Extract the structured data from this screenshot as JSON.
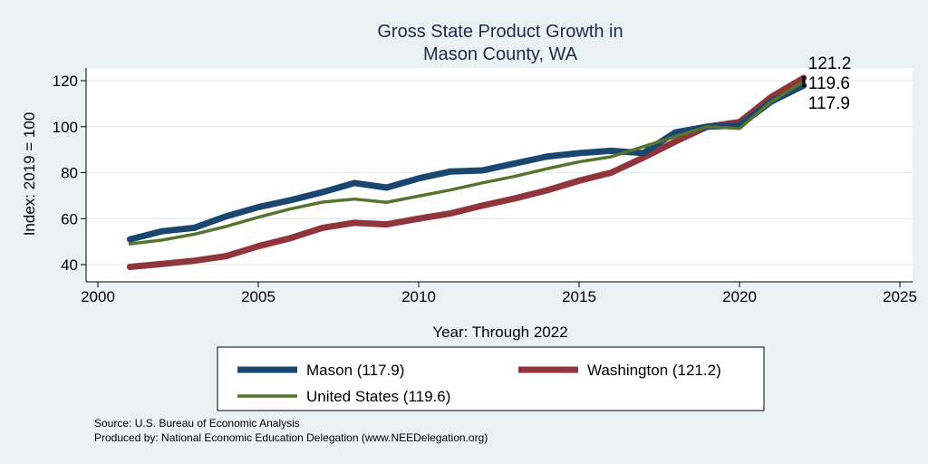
{
  "chart_data": {
    "type": "line",
    "title": [
      "Gross State Product Growth in",
      "Mason County, WA"
    ],
    "xlabel": "Year: Through 2022",
    "ylabel": "Index: 2019 = 100",
    "xlim": [
      2000,
      2025
    ],
    "ylim": [
      35,
      125
    ],
    "xticks": [
      2000,
      2005,
      2010,
      2015,
      2020,
      2025
    ],
    "yticks": [
      40,
      60,
      80,
      100,
      120
    ],
    "grid": true,
    "x": [
      2001,
      2002,
      2003,
      2004,
      2005,
      2006,
      2007,
      2008,
      2009,
      2010,
      2011,
      2012,
      2013,
      2014,
      2015,
      2016,
      2017,
      2018,
      2019,
      2020,
      2021,
      2022
    ],
    "series": [
      {
        "name": "Mason  (117.9)",
        "color": "#1a476f",
        "end_label": "117.9",
        "values": [
          51,
          54.5,
          56,
          61,
          65,
          68,
          71.5,
          75.5,
          73.5,
          77.5,
          80.5,
          81,
          84,
          87,
          88.5,
          89.5,
          88.5,
          97.5,
          100,
          100.5,
          111,
          117.9
        ]
      },
      {
        "name": "Washington (121.2)",
        "color": "#90353b",
        "end_label": "121.2",
        "values": [
          39,
          40.3,
          41.7,
          43.7,
          48,
          51.5,
          56,
          58.2,
          57.5,
          60,
          62.3,
          65.7,
          68.8,
          72.3,
          76.5,
          80,
          86.5,
          93.5,
          100,
          102,
          113,
          121.2
        ]
      },
      {
        "name": "United States (119.6)",
        "color": "#55752f",
        "end_label": "119.6",
        "values": [
          49,
          50.7,
          53.2,
          56.6,
          60.6,
          64.2,
          67.2,
          68.5,
          67.1,
          69.8,
          72.5,
          75.6,
          78.4,
          81.7,
          84.7,
          86.9,
          91.3,
          95.7,
          100,
          99.2,
          111,
          119.6
        ]
      }
    ],
    "legend": "bottom",
    "notes": [
      "Source: U.S. Bureau of Economic Analysis",
      "Produced by: National Economic Education Delegation (www.NEEDelegation.org)"
    ]
  }
}
